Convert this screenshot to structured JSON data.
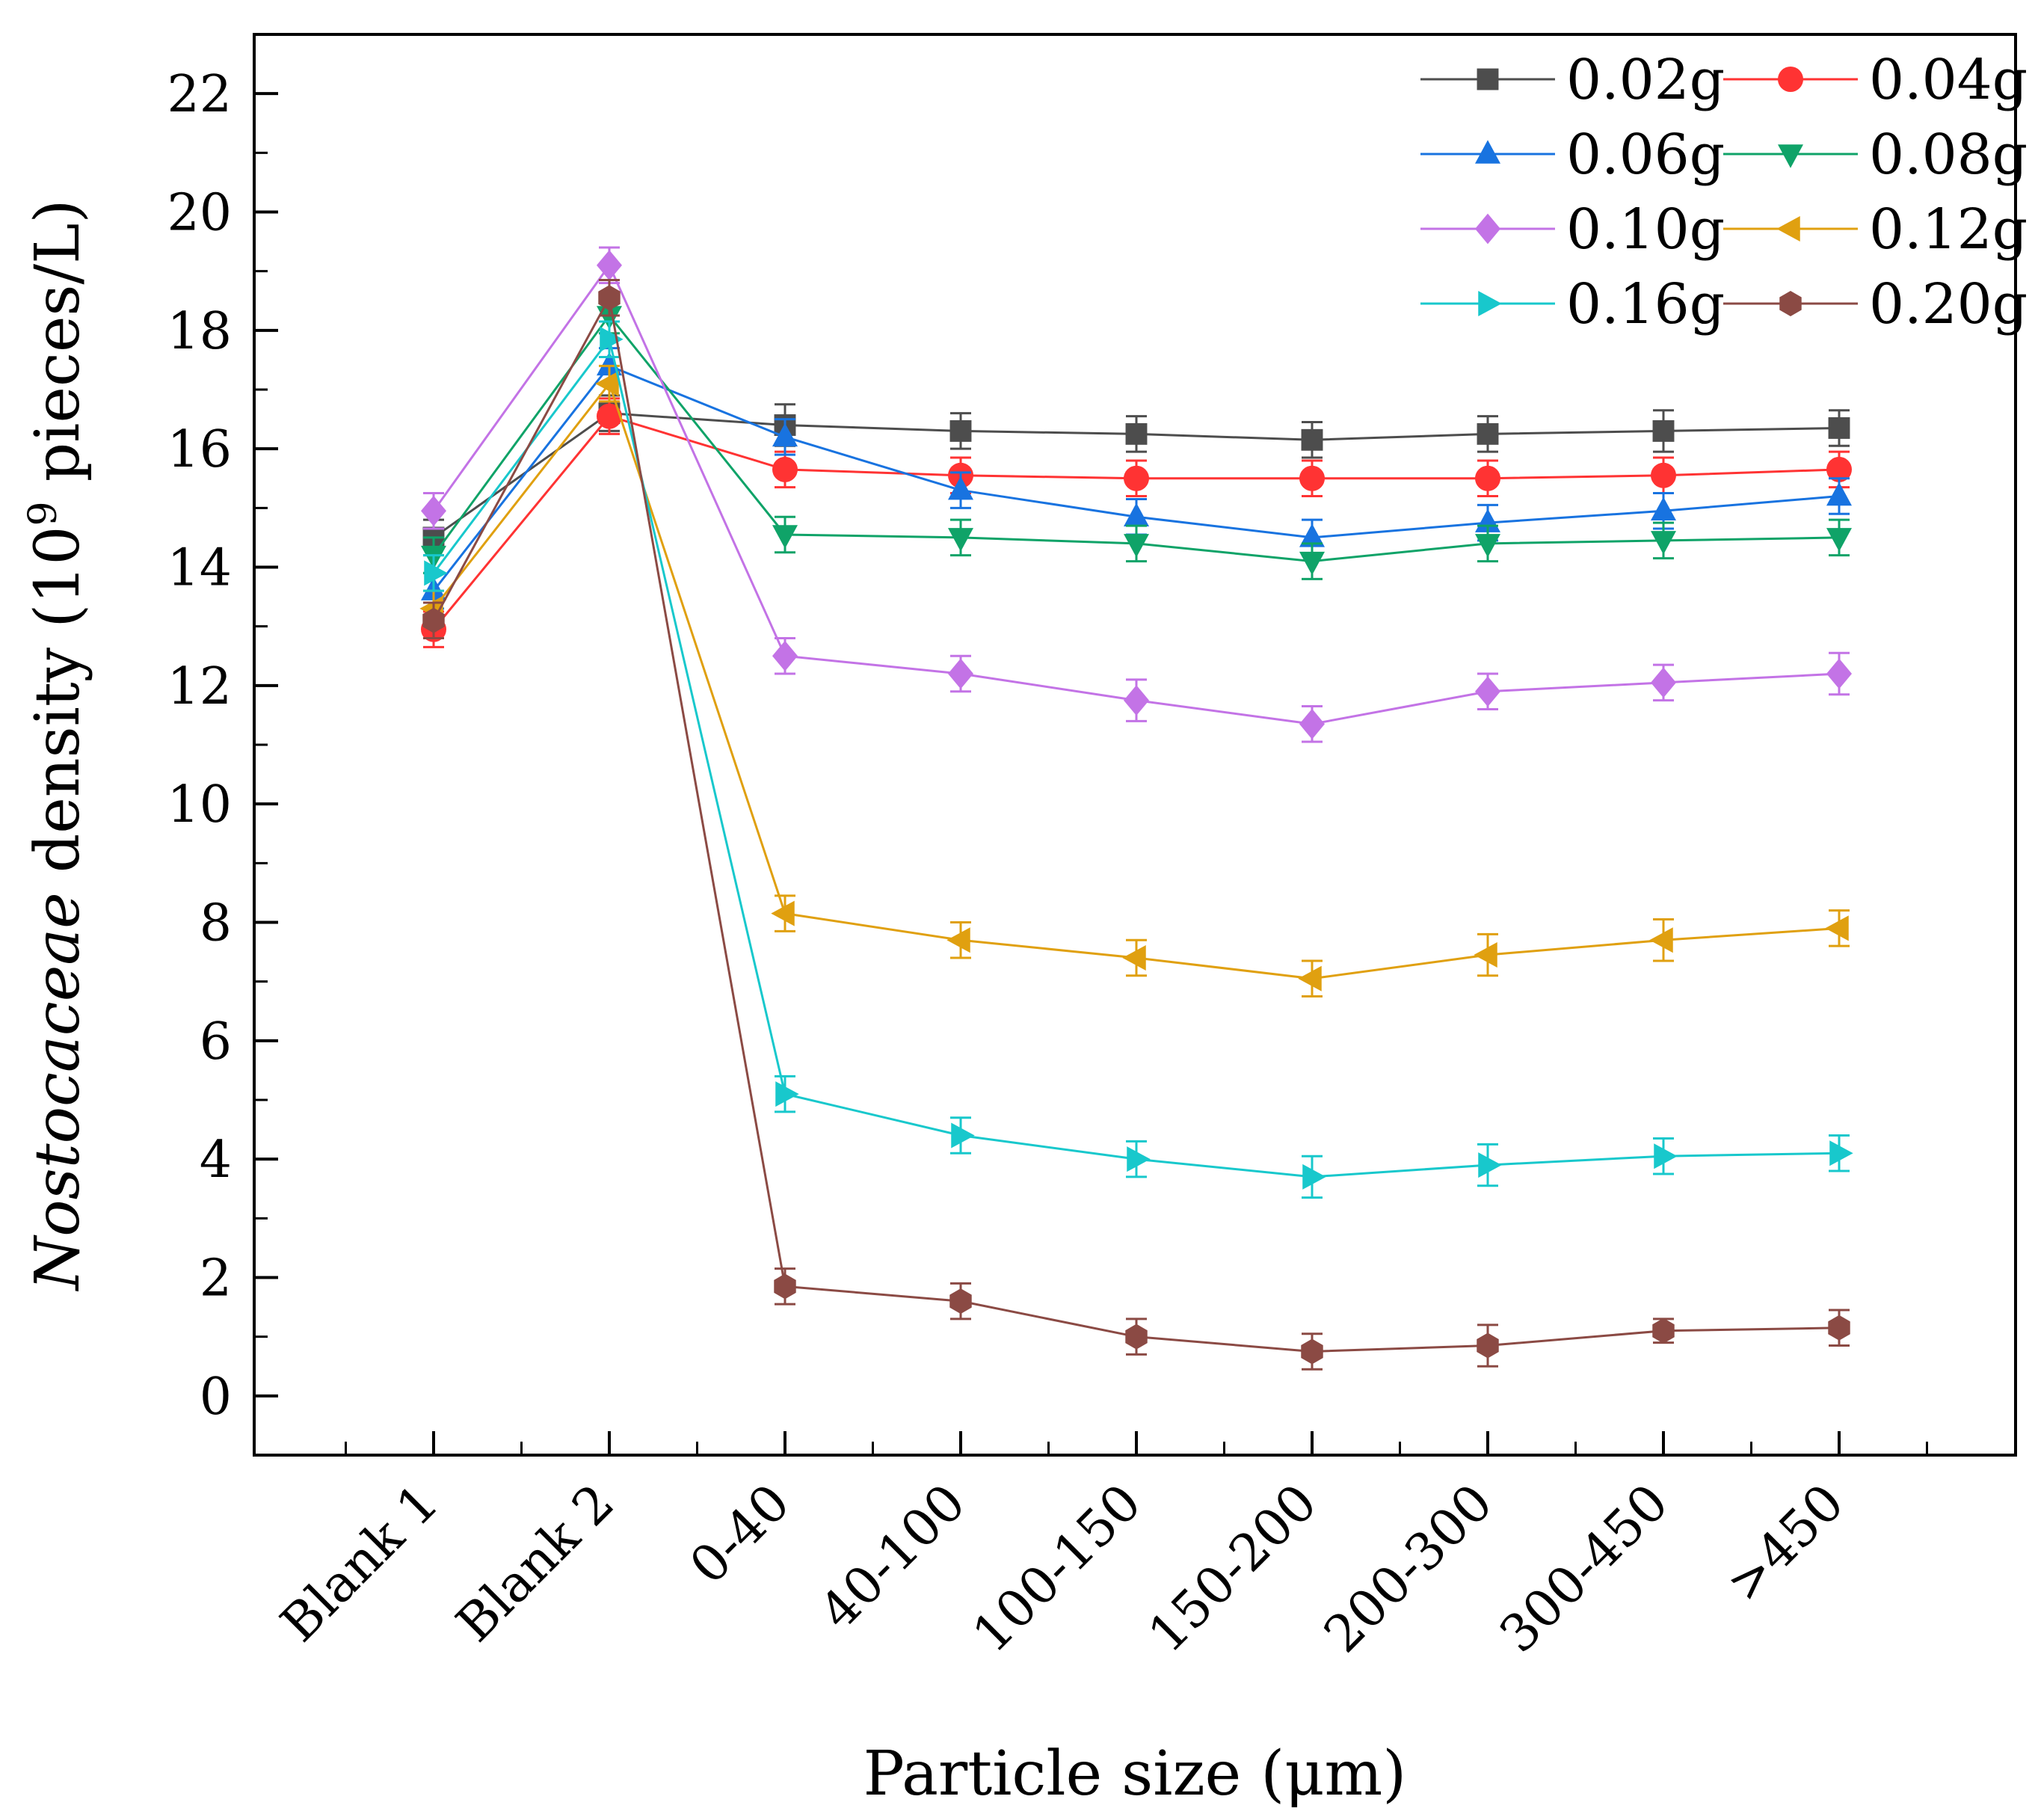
{
  "chart_data": {
    "type": "line",
    "title": "",
    "xlabel": "Particle size (μm)",
    "ylabel": {
      "italic": "Nostocaceae",
      "text": " density (10",
      "sup": "9",
      "unit": " pieces/L)"
    },
    "ylim": [
      -1,
      23
    ],
    "yticks": [
      0,
      2,
      4,
      6,
      8,
      10,
      12,
      14,
      16,
      18,
      20,
      22
    ],
    "categories": [
      "Blank 1",
      "Blank 2",
      "0-40",
      "40-100",
      "100-150",
      "150-200",
      "200-300",
      "300-450",
      ">450"
    ],
    "legend_position": "top-right",
    "grid": false,
    "error_bars": true,
    "series": [
      {
        "name": "0.02g",
        "color": "#4d4d4d",
        "marker": "square",
        "values": [
          14.5,
          16.6,
          16.4,
          16.3,
          16.25,
          16.15,
          16.25,
          16.3,
          16.35
        ],
        "errors": [
          0.3,
          0.3,
          0.35,
          0.3,
          0.3,
          0.3,
          0.3,
          0.35,
          0.3
        ]
      },
      {
        "name": "0.04g",
        "color": "#ff3333",
        "marker": "circle",
        "values": [
          12.95,
          16.55,
          15.65,
          15.55,
          15.5,
          15.5,
          15.5,
          15.55,
          15.65
        ],
        "errors": [
          0.3,
          0.3,
          0.3,
          0.3,
          0.3,
          0.3,
          0.3,
          0.3,
          0.3
        ]
      },
      {
        "name": "0.06g",
        "color": "#1873e0",
        "marker": "triangle-up",
        "values": [
          13.6,
          17.4,
          16.2,
          15.3,
          14.85,
          14.5,
          14.75,
          14.95,
          15.2
        ],
        "errors": [
          0.3,
          0.3,
          0.3,
          0.3,
          0.3,
          0.3,
          0.3,
          0.3,
          0.3
        ]
      },
      {
        "name": "0.08g",
        "color": "#0fa368",
        "marker": "triangle-down",
        "values": [
          14.2,
          18.25,
          14.55,
          14.5,
          14.4,
          14.1,
          14.4,
          14.45,
          14.5
        ],
        "errors": [
          0.3,
          0.3,
          0.3,
          0.3,
          0.3,
          0.3,
          0.3,
          0.3,
          0.3
        ]
      },
      {
        "name": "0.10g",
        "color": "#c373e6",
        "marker": "diamond",
        "values": [
          14.95,
          19.1,
          12.5,
          12.2,
          11.75,
          11.35,
          11.9,
          12.05,
          12.2
        ],
        "errors": [
          0.3,
          0.3,
          0.3,
          0.3,
          0.35,
          0.3,
          0.3,
          0.3,
          0.35
        ]
      },
      {
        "name": "0.12g",
        "color": "#e0a010",
        "marker": "triangle-left",
        "values": [
          13.3,
          17.1,
          8.15,
          7.7,
          7.4,
          7.05,
          7.45,
          7.7,
          7.9
        ],
        "errors": [
          0.3,
          0.3,
          0.3,
          0.3,
          0.3,
          0.3,
          0.35,
          0.35,
          0.3
        ]
      },
      {
        "name": "0.16g",
        "color": "#18c8cc",
        "marker": "triangle-right",
        "values": [
          13.9,
          17.85,
          5.1,
          4.4,
          4.0,
          3.7,
          3.9,
          4.05,
          4.1
        ],
        "errors": [
          0.3,
          0.3,
          0.3,
          0.3,
          0.3,
          0.35,
          0.35,
          0.3,
          0.3
        ]
      },
      {
        "name": "0.20g",
        "color": "#8b4a44",
        "marker": "hexagon",
        "values": [
          13.1,
          18.55,
          1.85,
          1.6,
          1.0,
          0.75,
          0.85,
          1.1,
          1.15
        ],
        "errors": [
          0.3,
          0.3,
          0.3,
          0.3,
          0.3,
          0.3,
          0.35,
          0.2,
          0.3
        ]
      }
    ]
  }
}
